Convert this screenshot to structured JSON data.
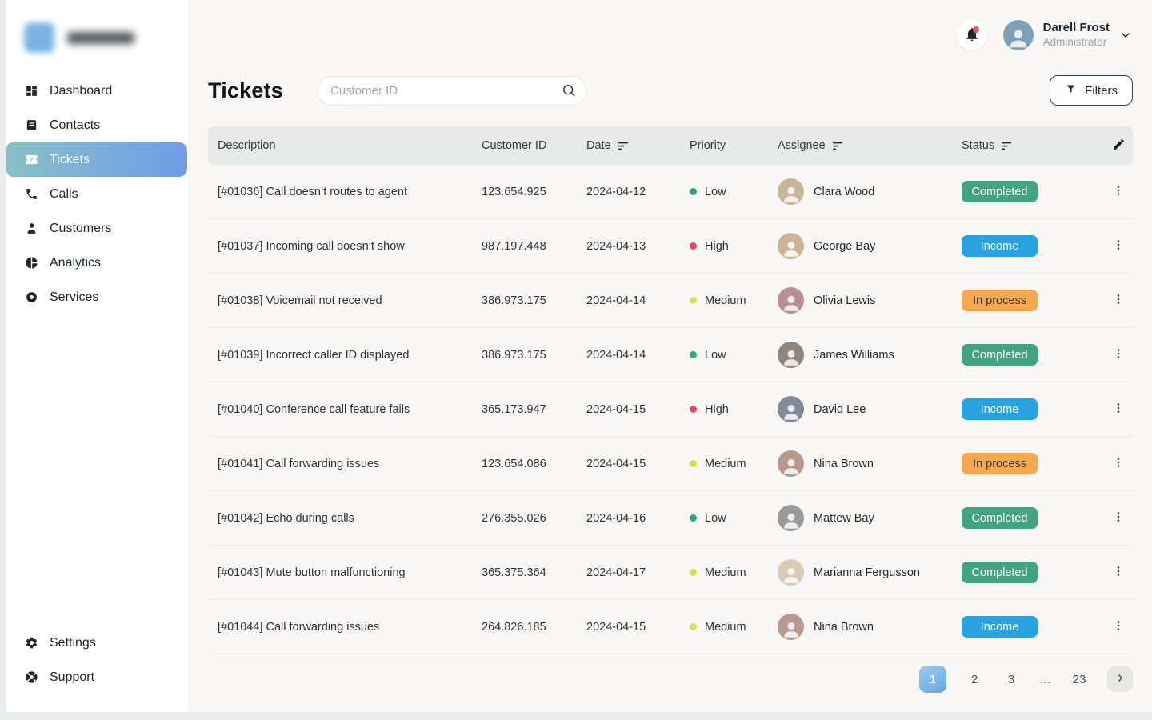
{
  "user": {
    "name": "Darell Frost",
    "role": "Administrator"
  },
  "page": {
    "title": "Tickets"
  },
  "search": {
    "placeholder": "Customer ID"
  },
  "filters": {
    "label": "Filters"
  },
  "sidebar": {
    "items": [
      {
        "label": "Dashboard",
        "icon": "dashboard",
        "active": false
      },
      {
        "label": "Contacts",
        "icon": "contacts",
        "active": false
      },
      {
        "label": "Tickets",
        "icon": "ticket",
        "active": true
      },
      {
        "label": "Calls",
        "icon": "phone",
        "active": false
      },
      {
        "label": "Customers",
        "icon": "person",
        "active": false
      },
      {
        "label": "Analytics",
        "icon": "pie-chart",
        "active": false
      },
      {
        "label": "Services",
        "icon": "donut",
        "active": false
      }
    ],
    "footer_items": [
      {
        "label": "Settings",
        "icon": "gear"
      },
      {
        "label": "Support",
        "icon": "lifebuoy"
      }
    ]
  },
  "table": {
    "columns": [
      {
        "label": "Description",
        "sortable": false
      },
      {
        "label": "Customer ID",
        "sortable": false
      },
      {
        "label": "Date",
        "sortable": true
      },
      {
        "label": "Priority",
        "sortable": false
      },
      {
        "label": "Assignee",
        "sortable": true
      },
      {
        "label": "Status",
        "sortable": true
      }
    ],
    "rows": [
      {
        "description": "[#01036] Call doesn’t routes to agent",
        "customer_id": "123.654.925",
        "date": "2024-04-12",
        "priority": "Low",
        "assignee": {
          "name": "Clara Wood",
          "avatar_color": "#c8b39b"
        },
        "status": "Completed"
      },
      {
        "description": "[#01037] Incoming call doesn’t show",
        "customer_id": "987.197.448",
        "date": "2024-04-13",
        "priority": "High",
        "assignee": {
          "name": "George Bay",
          "avatar_color": "#cdb496"
        },
        "status": "Income"
      },
      {
        "description": "[#01038] Voicemail not received",
        "customer_id": "386.973.175",
        "date": "2024-04-14",
        "priority": "Medium",
        "assignee": {
          "name": "Olivia Lewis",
          "avatar_color": "#b98f95"
        },
        "status": "In process"
      },
      {
        "description": "[#01039] Incorrect caller ID displayed",
        "customer_id": "386.973.175",
        "date": "2024-04-14",
        "priority": "Low",
        "assignee": {
          "name": "James Williams",
          "avatar_color": "#8f857c"
        },
        "status": "Completed"
      },
      {
        "description": "[#01040] Conference call feature fails",
        "customer_id": "365.173.947",
        "date": "2024-04-15",
        "priority": "High",
        "assignee": {
          "name": "David Lee",
          "avatar_color": "#7e8b99"
        },
        "status": "Income"
      },
      {
        "description": "[#01041] Call forwarding issues",
        "customer_id": "123.654.086",
        "date": "2024-04-15",
        "priority": "Medium",
        "assignee": {
          "name": "Nina Brown",
          "avatar_color": "#b69a90"
        },
        "status": "In process"
      },
      {
        "description": "[#01042] Echo during calls",
        "customer_id": "276.355.026",
        "date": "2024-04-16",
        "priority": "Low",
        "assignee": {
          "name": "Mattew Bay",
          "avatar_color": "#9a9a9a"
        },
        "status": "Completed"
      },
      {
        "description": "[#01043] Mute button malfunctioning",
        "customer_id": "365.375.364",
        "date": "2024-04-17",
        "priority": "Medium",
        "assignee": {
          "name": "Marianna Fergusson",
          "avatar_color": "#d9cbb6"
        },
        "status": "Completed"
      },
      {
        "description": "[#01044] Call forwarding issues",
        "customer_id": "264.826.185",
        "date": "2024-04-15",
        "priority": "Medium",
        "assignee": {
          "name": "Nina Brown",
          "avatar_color": "#b69a90"
        },
        "status": "Income"
      }
    ]
  },
  "pagination": {
    "pages": [
      "1",
      "2",
      "3",
      "…",
      "23"
    ],
    "active": "1"
  },
  "colors": {
    "accent_gradient": [
      "#87c0c6",
      "#6f9de8"
    ],
    "pagination_gradient": [
      "#9fcbe9",
      "#64a7e2"
    ],
    "topbar_avatar": "#7f9fb8",
    "priority": {
      "Low": "#2fa87b",
      "High": "#e8475c",
      "Medium": "#d8e04c"
    },
    "status": {
      "Completed": {
        "bg": "#42a282",
        "fg": "#ffffff"
      },
      "Income": {
        "bg": "#2aa2de",
        "fg": "#ffffff"
      },
      "In process": {
        "bg": "#f5a854",
        "fg": "#3f3526"
      }
    }
  }
}
